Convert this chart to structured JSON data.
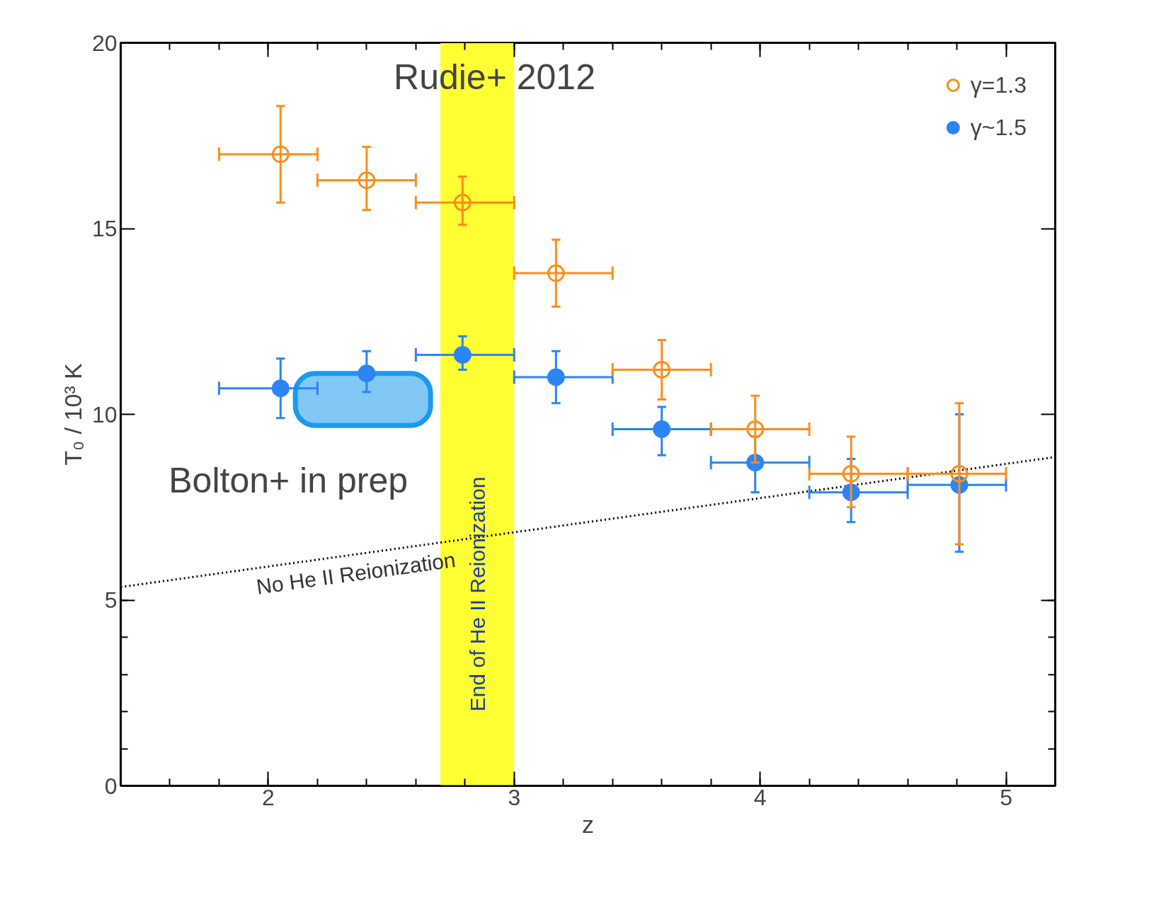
{
  "chart_data": {
    "type": "scatter",
    "xlabel": "z",
    "ylabel": "T₀ / 10³ K",
    "xlim": [
      1.4,
      5.2
    ],
    "ylim": [
      0,
      20
    ],
    "xticks": [
      2,
      3,
      4,
      5
    ],
    "yticks": [
      0,
      5,
      10,
      15,
      20
    ],
    "grid": false,
    "legend": "top right",
    "annotations": [
      "Rudie+ 2012"
    ],
    "bands": [
      {
        "axis": "x",
        "from": 2.7,
        "to": 3.0,
        "label": "End of He II Reionization",
        "color": "#ffff33"
      }
    ],
    "series": [
      {
        "name": "γ=1.3",
        "color": "#ff8c1a",
        "marker": "circle",
        "x": [
          2.05,
          2.4,
          2.79,
          3.17,
          3.6,
          3.98,
          4.37,
          4.81
        ],
        "values": [
          17.0,
          16.3,
          15.7,
          13.8,
          11.2,
          9.6,
          8.4,
          8.4
        ],
        "errors": [
          [
            15.7,
            18.3
          ],
          [
            15.5,
            17.2
          ],
          [
            15.1,
            16.4
          ],
          [
            12.9,
            14.7
          ],
          [
            10.4,
            12.0
          ],
          [
            8.7,
            10.5
          ],
          [
            7.5,
            9.4
          ],
          [
            6.5,
            10.3
          ]
        ],
        "xerrors": [
          [
            1.8,
            2.2
          ],
          [
            2.2,
            2.6
          ],
          [
            2.6,
            3.0
          ],
          [
            3.0,
            3.4
          ],
          [
            3.4,
            3.8
          ],
          [
            3.8,
            4.2
          ],
          [
            4.2,
            4.6
          ],
          [
            4.6,
            5.0
          ]
        ]
      },
      {
        "name": "γ~1.5",
        "color": "#2b85f5",
        "marker": "circle",
        "x": [
          2.05,
          2.4,
          2.79,
          3.17,
          3.6,
          3.98,
          4.37,
          4.81
        ],
        "values": [
          10.7,
          11.1,
          11.6,
          11.0,
          9.6,
          8.7,
          7.9,
          8.1
        ],
        "errors": [
          [
            9.9,
            11.5
          ],
          [
            10.6,
            11.7
          ],
          [
            11.2,
            12.1
          ],
          [
            10.3,
            11.7
          ],
          [
            8.9,
            10.2
          ],
          [
            7.9,
            9.4
          ],
          [
            7.1,
            8.8
          ],
          [
            6.3,
            10.0
          ]
        ],
        "xerrors": [
          [
            1.8,
            2.2
          ],
          null,
          [
            2.6,
            3.0
          ],
          [
            3.0,
            3.4
          ],
          [
            3.4,
            3.8
          ],
          [
            3.8,
            4.2
          ],
          [
            4.2,
            4.6
          ],
          [
            4.6,
            5.0
          ]
        ]
      },
      {
        "type": "bar",
        "name": "Bolton+ in prep",
        "color": "#1a9af0",
        "x": [
          2.385
        ],
        "base": [
          9.7
        ],
        "values": [
          1.4
        ]
      },
      {
        "type": "line",
        "name": "No He II Reionization",
        "color": "#000000",
        "line_style": "dotted",
        "x": [
          1.4,
          5.2
        ],
        "values": [
          5.35,
          8.85
        ]
      }
    ]
  }
}
